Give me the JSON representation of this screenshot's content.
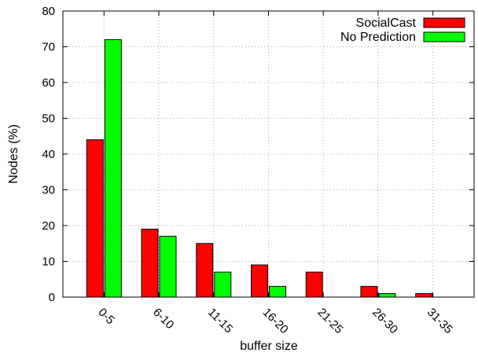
{
  "chart_data": {
    "type": "bar",
    "title": "",
    "xlabel": "buffer size",
    "ylabel": "Nodes (%)",
    "categories": [
      "0-5",
      "6-10",
      "11-15",
      "16-20",
      "21-25",
      "26-30",
      "31-35"
    ],
    "series": [
      {
        "name": "SocialCast",
        "color": "#ff0000",
        "values": [
          44,
          19,
          15,
          9,
          7,
          3,
          1
        ]
      },
      {
        "name": "No Prediction",
        "color": "#00ff00",
        "values": [
          72,
          17,
          7,
          3,
          0,
          1,
          0
        ]
      }
    ],
    "ylim": [
      0,
      80
    ],
    "yticks": [
      0,
      10,
      20,
      30,
      40,
      50,
      60,
      70,
      80
    ],
    "grid": true,
    "legend_position": "top-right"
  }
}
